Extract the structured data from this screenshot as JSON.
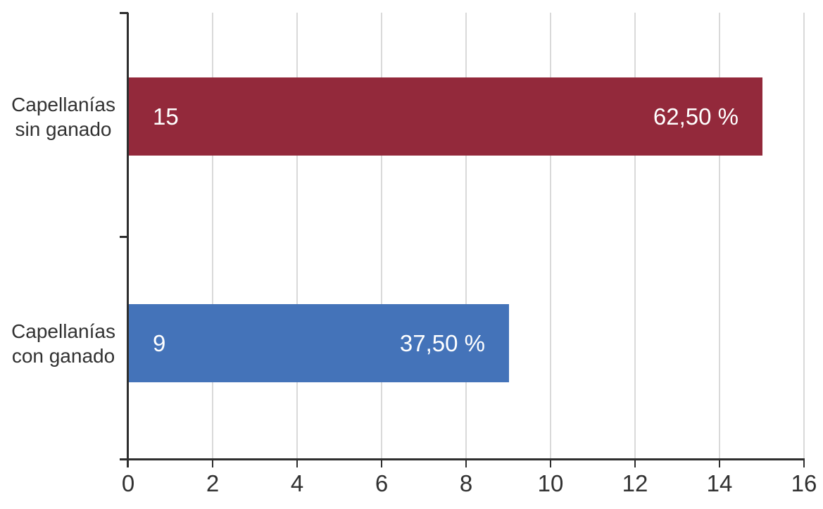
{
  "chart_data": {
    "type": "bar",
    "orientation": "horizontal",
    "title": "",
    "categories": [
      "Capellanías sin ganado",
      "Capellanías con ganado"
    ],
    "category_lines": [
      [
        "Capellanías",
        "sin ganado"
      ],
      [
        "Capellanías",
        "con ganado"
      ]
    ],
    "values": [
      15,
      9
    ],
    "value_labels": [
      "15",
      "9"
    ],
    "percent_labels": [
      "62,50 %",
      "37,50 %"
    ],
    "bar_colors": [
      "#93293B",
      "#4473B9"
    ],
    "xlim": [
      0,
      16
    ],
    "x_ticks": [
      0,
      2,
      4,
      6,
      8,
      10,
      12,
      14,
      16
    ],
    "grid": true,
    "legend": false,
    "colors": {
      "gridline": "#D9D9D9",
      "axis": "#2E2E2E",
      "tick_label": "#313131",
      "bar_value_text": "#FFFFFF",
      "background": "#FFFFFF"
    }
  }
}
